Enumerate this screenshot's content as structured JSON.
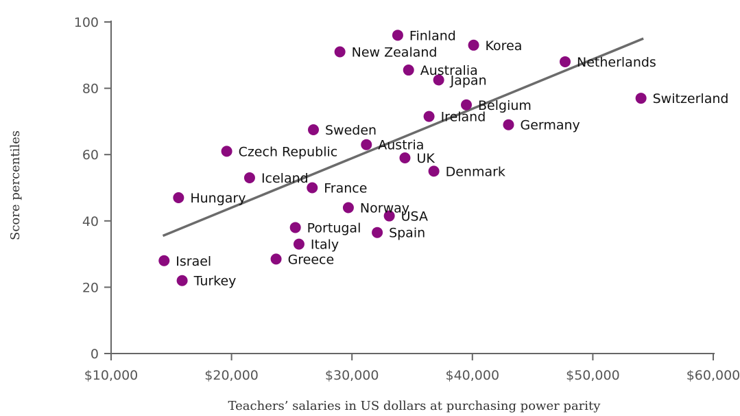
{
  "chart_data": {
    "type": "scatter",
    "xlabel": "Teachers’ salaries in US dollars at purchasing power parity",
    "ylabel": "Score percentiles",
    "xlim": [
      10000,
      60000
    ],
    "ylim": [
      0,
      100
    ],
    "x_ticks": [
      10000,
      20000,
      30000,
      40000,
      50000,
      60000
    ],
    "x_tick_labels": [
      "$10,000",
      "$20,000",
      "$30,000",
      "$40,000",
      "$50,000",
      "$60,000"
    ],
    "y_ticks": [
      0,
      20,
      40,
      60,
      80,
      100
    ],
    "y_tick_labels": [
      "0",
      "20",
      "40",
      "60",
      "80",
      "100"
    ],
    "grid": false,
    "point_color": "#8B0A7E",
    "trend_color": "#6b6b6b",
    "axis_color": "#666666",
    "trendline": {
      "x": [
        14300,
        54200
      ],
      "y": [
        35.5,
        95
      ]
    },
    "points": [
      {
        "label": "Finland",
        "x": 33800,
        "y": 96
      },
      {
        "label": "Korea",
        "x": 40100,
        "y": 93
      },
      {
        "label": "New Zealand",
        "x": 29000,
        "y": 91
      },
      {
        "label": "Netherlands",
        "x": 47700,
        "y": 88
      },
      {
        "label": "Australia",
        "x": 34700,
        "y": 85.5
      },
      {
        "label": "Japan",
        "x": 37200,
        "y": 82.5
      },
      {
        "label": "Switzerland",
        "x": 54000,
        "y": 77
      },
      {
        "label": "Belgium",
        "x": 39500,
        "y": 75
      },
      {
        "label": "Ireland",
        "x": 36400,
        "y": 71.5
      },
      {
        "label": "Germany",
        "x": 43000,
        "y": 69
      },
      {
        "label": "Sweden",
        "x": 26800,
        "y": 67.5
      },
      {
        "label": "Austria",
        "x": 31200,
        "y": 63
      },
      {
        "label": "Czech Republic",
        "x": 19600,
        "y": 61
      },
      {
        "label": "UK",
        "x": 34400,
        "y": 59
      },
      {
        "label": "Denmark",
        "x": 36800,
        "y": 55
      },
      {
        "label": "Iceland",
        "x": 21500,
        "y": 53
      },
      {
        "label": "France",
        "x": 26700,
        "y": 50
      },
      {
        "label": "Hungary",
        "x": 15600,
        "y": 47
      },
      {
        "label": "Norway",
        "x": 29700,
        "y": 44
      },
      {
        "label": "USA",
        "x": 33100,
        "y": 41.5
      },
      {
        "label": "Portugal",
        "x": 25300,
        "y": 38
      },
      {
        "label": "Spain",
        "x": 32100,
        "y": 36.5
      },
      {
        "label": "Italy",
        "x": 25600,
        "y": 33
      },
      {
        "label": "Greece",
        "x": 23700,
        "y": 28.5
      },
      {
        "label": "Israel",
        "x": 14400,
        "y": 28
      },
      {
        "label": "Turkey",
        "x": 15900,
        "y": 22
      }
    ]
  }
}
